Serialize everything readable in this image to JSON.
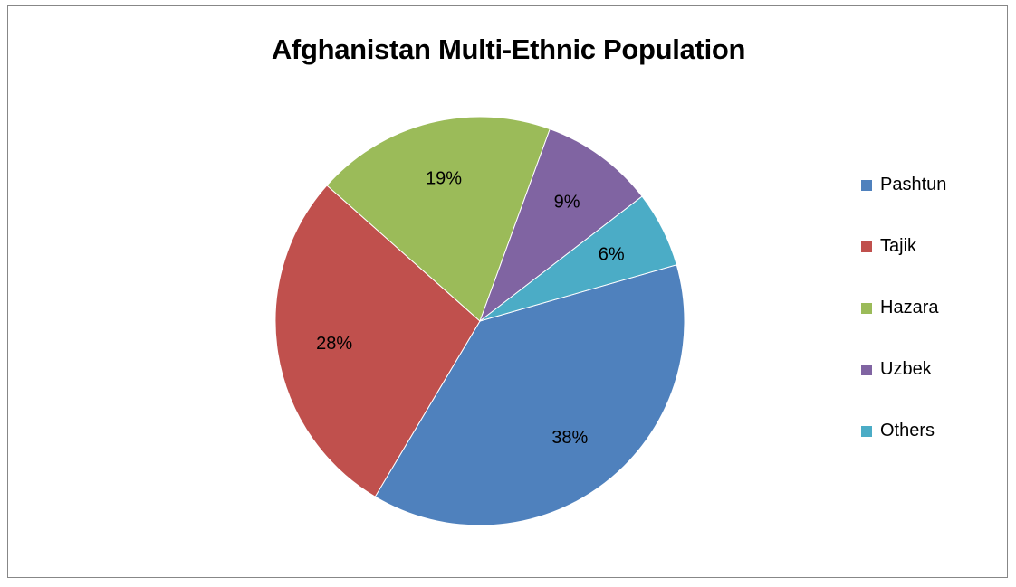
{
  "chart_data": {
    "type": "pie",
    "title": "Afghanistan Multi-Ethnic Population",
    "categories": [
      "Pashtun",
      "Tajik",
      "Hazara",
      "Uzbek",
      "Others"
    ],
    "values": [
      38,
      28,
      19,
      9,
      6
    ],
    "labels": [
      "38%",
      "28%",
      "19%",
      "9%",
      "6%"
    ],
    "colors": [
      "#4F81BD",
      "#C0504D",
      "#9BBB59",
      "#8064A2",
      "#4BACC6"
    ],
    "legend_position": "right",
    "start_angle_deg": 74,
    "direction": "clockwise"
  }
}
